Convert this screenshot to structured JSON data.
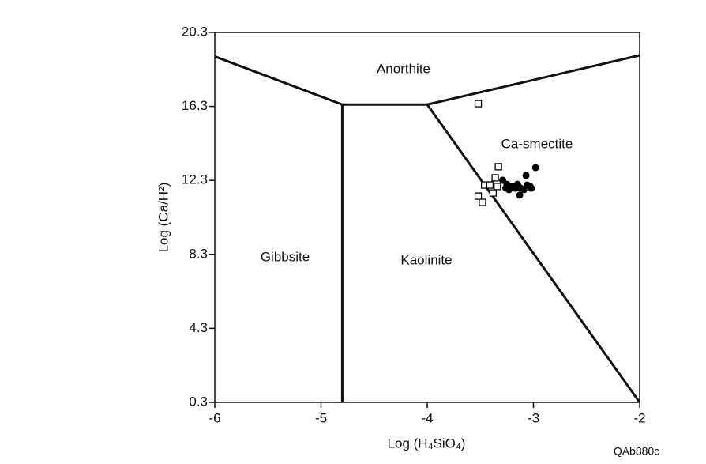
{
  "chart_data": {
    "type": "scatter",
    "x_label": "Log (H₄SiO₄)",
    "y_label": "Log (Ca/H²)",
    "xlim": [
      -6,
      -2
    ],
    "ylim": [
      0.3,
      20.3
    ],
    "xticks": [
      -6,
      -5,
      -4,
      -3,
      -2
    ],
    "yticks": [
      0.3,
      4.3,
      8.3,
      12.3,
      16.3,
      20.3
    ],
    "annotations": [
      "Anorthite",
      "Ca-smectite",
      "Gibbsite",
      "Kaolinite",
      "QAb880c"
    ],
    "boundaries": [
      {
        "x": [
          -6,
          -4.8,
          -4.0,
          -2
        ],
        "y": [
          19.0,
          16.4,
          16.4,
          19.06
        ]
      },
      {
        "x": [
          -4.8,
          -4.8
        ],
        "y": [
          16.4,
          0.3
        ]
      },
      {
        "x": [
          -4.0,
          -2
        ],
        "y": [
          16.4,
          0.3
        ]
      }
    ],
    "series": [
      {
        "marker": "square",
        "color": "#000000",
        "x": [
          -3.52,
          -3.33,
          -3.36,
          -3.46,
          -3.41,
          -3.34,
          -3.38,
          -3.52,
          -3.48
        ],
        "y": [
          16.45,
          13.04,
          12.44,
          12.05,
          12.05,
          11.97,
          11.62,
          11.45,
          11.11
        ]
      },
      {
        "marker": "circle",
        "color": "#000000",
        "x": [
          -3.29,
          -3.25,
          -3.2,
          -3.15,
          -3.12,
          -3.07,
          -3.06,
          -3.03,
          -2.98,
          -3.26,
          -3.17,
          -3.13,
          -3.09,
          -3.02,
          -3.23
        ],
        "y": [
          12.31,
          12.09,
          11.97,
          12.09,
          11.88,
          12.57,
          12.05,
          11.97,
          12.99,
          11.88,
          11.88,
          11.5,
          11.8,
          11.88,
          11.8
        ]
      }
    ]
  }
}
